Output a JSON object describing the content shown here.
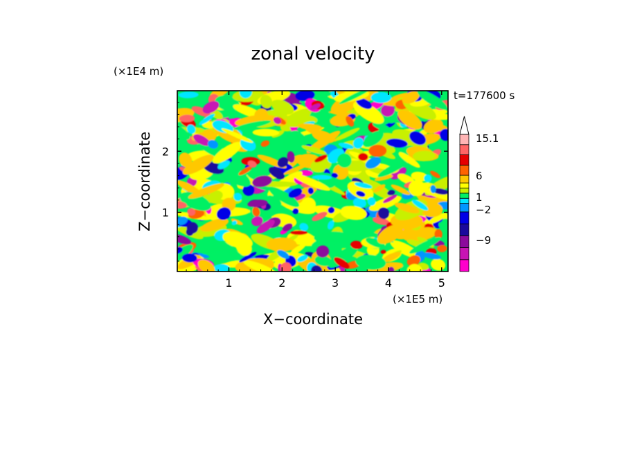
{
  "chart_data": {
    "type": "heatmap",
    "title": "zonal velocity",
    "xlabel": "X−coordinate",
    "ylabel": "Z−coordinate",
    "x_unit_label": "(×1E5 m)",
    "y_unit_label": "(×1E4 m)",
    "time_label": "t=177600 s",
    "x_range": [
      0.03,
      5.12
    ],
    "y_range": [
      0.03,
      2.99
    ],
    "x_ticks": [
      {
        "value": 1,
        "label": "1"
      },
      {
        "value": 2,
        "label": "2"
      },
      {
        "value": 3,
        "label": "3"
      },
      {
        "value": 4,
        "label": "4"
      },
      {
        "value": 5,
        "label": "5"
      }
    ],
    "y_ticks": [
      {
        "value": 1,
        "label": "1"
      },
      {
        "value": 2,
        "label": "2"
      }
    ],
    "colorbar": {
      "levels": [
        -15.1,
        -12,
        -9,
        -6,
        -4,
        -2,
        -1,
        0,
        1,
        2,
        4,
        6,
        9,
        12,
        15.1
      ],
      "colors": [
        "#ff00cc",
        "#c814b4",
        "#8c0a9c",
        "#1a0a9c",
        "#0000e6",
        "#0096ff",
        "#00e6ff",
        "#00f064",
        "#c8f000",
        "#ffff00",
        "#ffc800",
        "#ff6400",
        "#e60000",
        "#ff6464",
        "#ffb4b4"
      ],
      "labeled_levels": [
        {
          "value": 15.1,
          "label": "15.1"
        },
        {
          "value": 6,
          "label": "6"
        },
        {
          "value": 1,
          "label": "1"
        },
        {
          "value": -2,
          "label": "−2"
        },
        {
          "value": -9,
          "label": "−9"
        }
      ],
      "extend": "max"
    },
    "grid": false
  }
}
